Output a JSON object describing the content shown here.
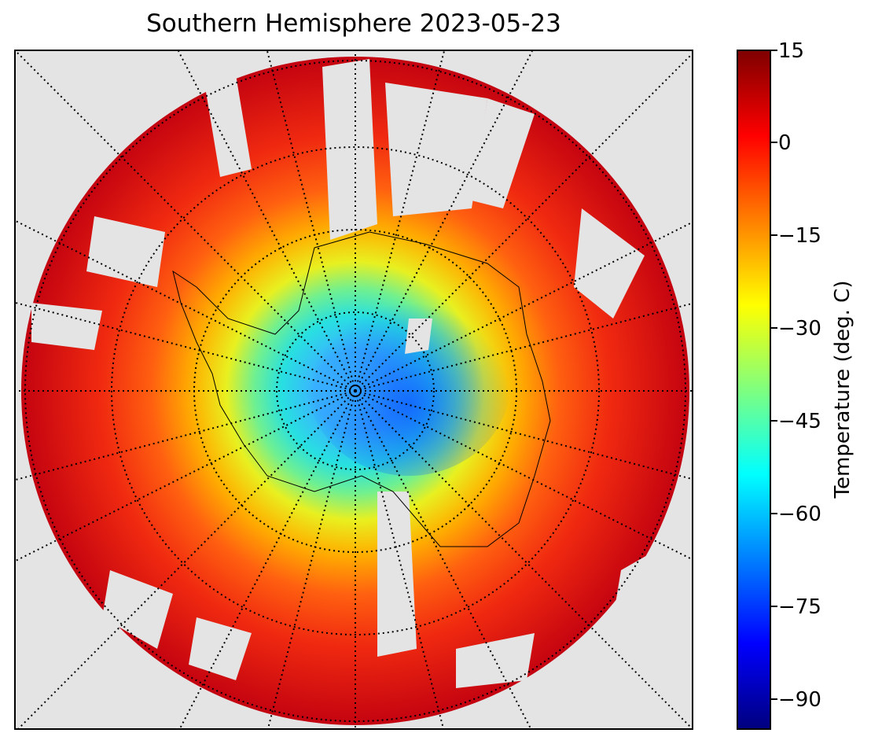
{
  "title": "Southern Hemisphere 2023-05-23",
  "map": {
    "projection": "south polar stereographic",
    "variable": "surface temperature",
    "graticule": "dotted black meridians and parallels",
    "background_color": "#e4e4e4"
  },
  "colorbar": {
    "label": "Temperature (deg. C)",
    "colormap": "jet",
    "range": [
      -95,
      15
    ],
    "ticks": [
      "15",
      "0",
      "−15",
      "−30",
      "−45",
      "−60",
      "−75",
      "−90"
    ]
  }
}
